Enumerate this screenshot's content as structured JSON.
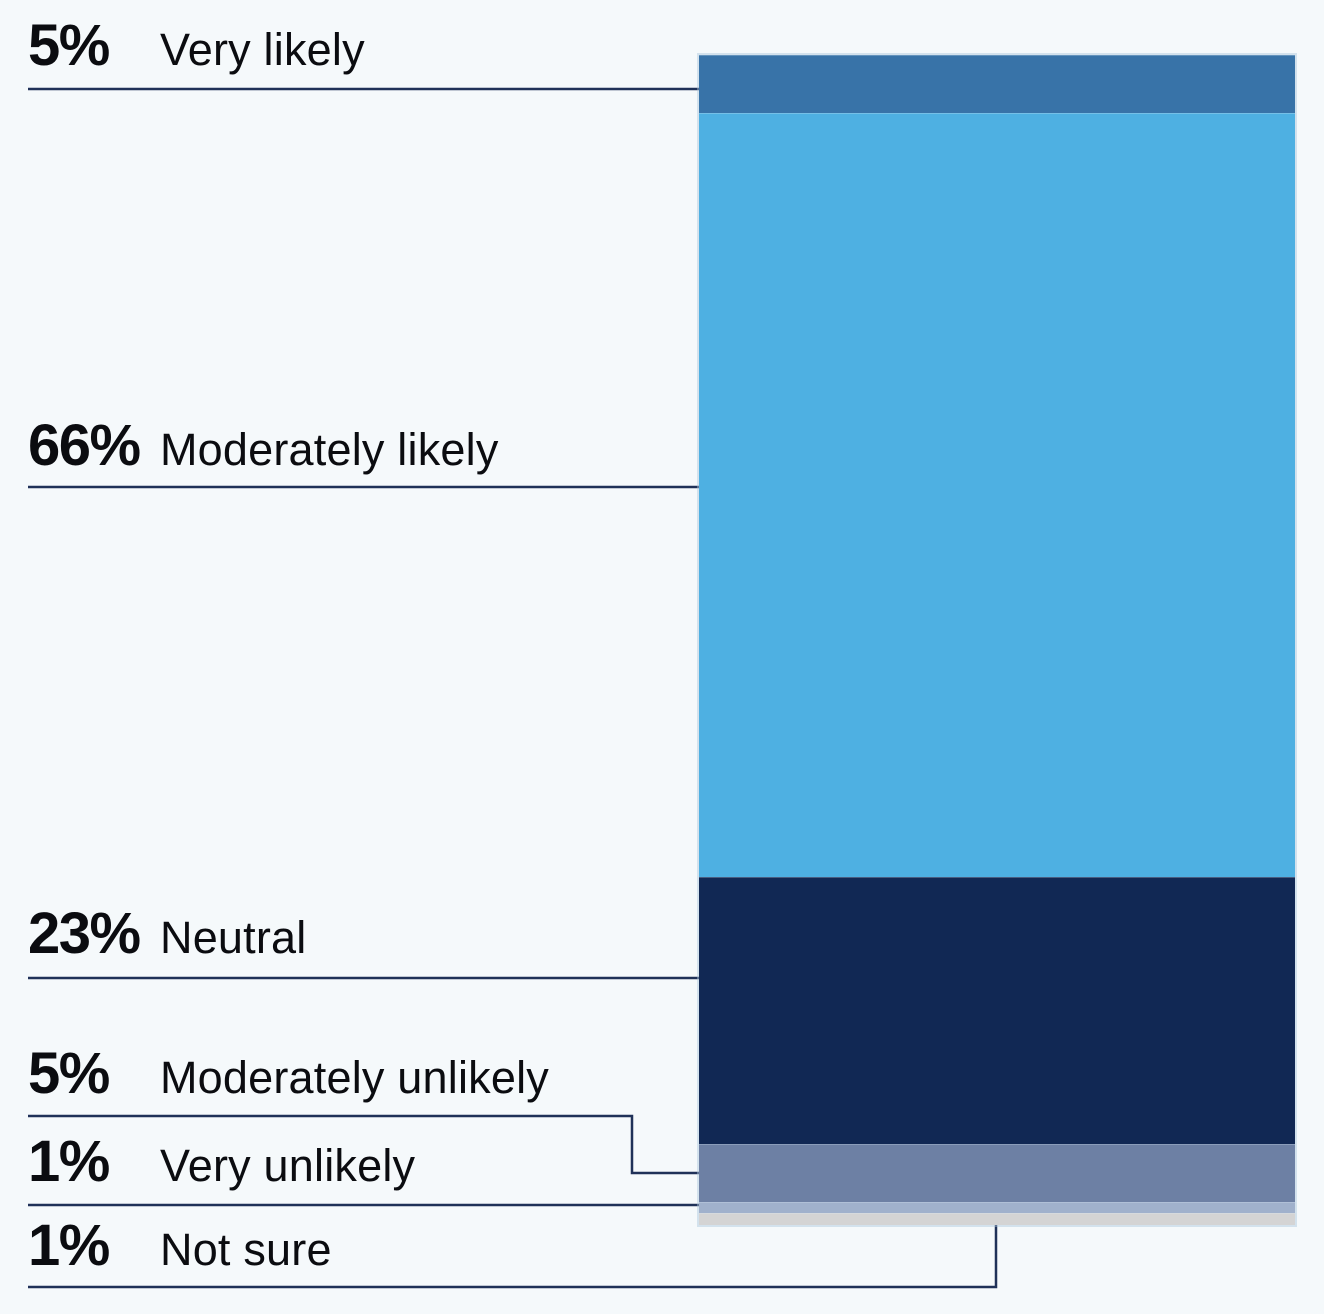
{
  "style": {
    "background": "#F5F9FB",
    "text_color": "#0B0C10",
    "leader_line_color": "#1F3158",
    "bar_outline_color": "rgba(170,197,219,0.45)"
  },
  "chart_data": {
    "type": "bar",
    "variant": "single_stacked_column",
    "orientation": "vertical",
    "title": "",
    "xlabel": "",
    "ylabel": "",
    "axes_visible": false,
    "grid": false,
    "legend_position": "left-callout-labels",
    "categories": [
      "Very likely",
      "Moderately likely",
      "Neutral",
      "Moderately unlikely",
      "Very unlikely",
      "Not sure"
    ],
    "values": [
      5,
      66,
      23,
      5,
      1,
      1
    ],
    "value_labels": [
      "5%",
      "66%",
      "23%",
      "5%",
      "1%",
      "1%"
    ],
    "series": [
      {
        "name": "Very likely",
        "value": 5,
        "value_label": "5%",
        "color": "#3873A8"
      },
      {
        "name": "Moderately likely",
        "value": 66,
        "value_label": "66%",
        "color": "#4EB0E2"
      },
      {
        "name": "Neutral",
        "value": 23,
        "value_label": "23%",
        "color": "#112854"
      },
      {
        "name": "Moderately unlikely",
        "value": 5,
        "value_label": "5%",
        "color": "#6D80A4"
      },
      {
        "name": "Very unlikely",
        "value": 1,
        "value_label": "1%",
        "color": "#A0B1CC"
      },
      {
        "name": "Not sure",
        "value": 1,
        "value_label": "1%",
        "color": "#D4D4D4"
      }
    ]
  }
}
